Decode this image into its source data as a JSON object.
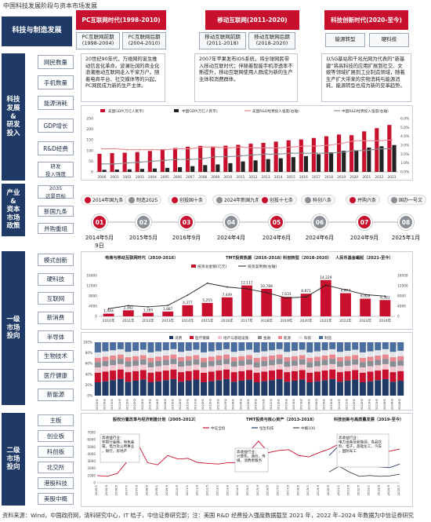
{
  "title": "中国科技发展阶段与资本市场发展",
  "footer": "资料来源：Wind，中国政府网，清科研究中心，IT 桔子，中信证券研究部；注：美国 R&D 经费投入强度数据截至 2021 年，2022 年–2024 年数据为中信证券研究",
  "section_tech": "科技与制造发展",
  "eras": [
    {
      "title": "PC互联网时代",
      "range": "(1998-2010)",
      "subs": [
        {
          "name": "PC互联网前期",
          "range": "(1998-2004)"
        },
        {
          "name": "PC互联网后期",
          "range": "(2004-2010)"
        }
      ]
    },
    {
      "title": "移动互联网",
      "range": "(2011-2020)",
      "subs": [
        {
          "name": "移动互联网前期",
          "range": "(2011-2018)"
        },
        {
          "name": "移动互联网后期",
          "range": "(2018-2020)"
        }
      ]
    },
    {
      "title": "科技创新时代",
      "range": "(2020-至今)",
      "subs": [
        {
          "name": "能源转型",
          "range": ""
        },
        {
          "name": "硬科技",
          "range": ""
        }
      ]
    }
  ],
  "section_invest": "科技\n发展\n&\n研发\n投入",
  "invest_tags": [
    "网民数量",
    "手机数量",
    "能源消耗",
    "GDP增长",
    "R&D经费",
    "研发\n投入强度"
  ],
  "descs": [
    "20世纪90年代，万维网的诞生推动信息化革命。波澜壮阔的商业化浪潮推动互联网走入千家万户。随着电商平台、社交媒体等的兴起，PC网民成为新的生产主体。",
    "2007年苹果发布IOS系统，将全球网民带入移动互联时代；伴随着智能手机渗透率不断提升，移动互联网使用人群成为新的生产主体和消费群体。",
    "以5G基站和千兆光网为代表的“新基建”将高科技的应用扩展到社交、文娱等领域扩展到工业制造领域，随着生产扩大带来的实物消耗与能源消耗，能源转型也成为新的变革趋势。"
  ],
  "gdp_chart": {
    "legend": [
      "美国GDP(万亿人民币)",
      "中国GDP(万亿人民币)",
      "美国R&D经费投入强度(右轴)",
      "中国R&D经费投入强度(右轴)"
    ],
    "years": [
      "2000",
      "2001",
      "2002",
      "2003",
      "2004",
      "2005",
      "2006",
      "2007",
      "2008",
      "2009",
      "2010",
      "2011",
      "2012",
      "2013",
      "2014",
      "2015",
      "2016",
      "2017",
      "2018",
      "2019",
      "2020",
      "2021",
      "2022",
      "2023"
    ],
    "us_gdp": [
      85,
      88,
      90,
      93,
      98,
      106,
      112,
      118,
      122,
      119,
      123,
      127,
      132,
      136,
      142,
      148,
      152,
      159,
      167,
      175,
      172,
      190,
      205,
      220
    ],
    "cn_gdp": [
      10,
      11,
      12,
      14,
      16,
      19,
      22,
      27,
      32,
      35,
      41,
      49,
      54,
      60,
      64,
      69,
      74,
      83,
      92,
      99,
      101,
      114,
      120,
      126
    ],
    "us_rd": [
      2.6,
      2.6,
      2.5,
      2.5,
      2.5,
      2.5,
      2.6,
      2.6,
      2.8,
      2.8,
      2.7,
      2.8,
      2.7,
      2.7,
      2.7,
      2.8,
      2.9,
      2.9,
      3.0,
      3.2,
      3.5,
      3.5,
      3.5,
      3.6
    ],
    "cn_rd": [
      0.9,
      0.9,
      1.0,
      1.1,
      1.2,
      1.3,
      1.4,
      1.4,
      1.5,
      1.7,
      1.7,
      1.8,
      1.9,
      2.0,
      2.0,
      2.1,
      2.1,
      2.1,
      2.1,
      2.2,
      2.4,
      2.4,
      2.6,
      2.6
    ],
    "ylim": [
      0,
      250
    ],
    "y2lim": [
      0,
      6
    ]
  },
  "section_policy": "产业\n&\n资本\n市场\n政策",
  "policy_tags": [
    "2035\n远景目标",
    "新国九条",
    "并购重组"
  ],
  "policies": [
    {
      "num": "01",
      "label": "2014年国九条",
      "date": "2014年5月9日",
      "color": "#c8102e"
    },
    {
      "num": "02",
      "label": "制造2025",
      "date": "2015年5月",
      "color": "#8a8f96"
    },
    {
      "num": "03",
      "label": "创投国十条",
      "date": "2016年9月",
      "color": "#c8102e"
    },
    {
      "num": "04",
      "label": "2024年新国九条",
      "date": "2024年4月",
      "color": "#8a8f96"
    },
    {
      "num": "05",
      "label": "创投十七条",
      "date": "2024年6月",
      "color": "#c8102e"
    },
    {
      "num": "06",
      "label": "科创八条",
      "date": "2024年6月",
      "color": "#8a8f96"
    },
    {
      "num": "07",
      "label": "并购六条",
      "date": "2024年9月",
      "color": "#c8102e"
    },
    {
      "num": "08",
      "label": "国办一号文",
      "date": "2025年1月",
      "color": "#8a8f96"
    }
  ],
  "section_primary": "一级\n市场\n投向",
  "primary_tags": [
    "模式创新",
    "硬科技",
    "互联网",
    "新消费",
    "半导体",
    "生物技术",
    "医疗健康",
    "新能源"
  ],
  "primary_phases": [
    "电商与移动互联网时代（2010-2016）",
    "TMT投资热潮（2016-2018）",
    "科创转型（2018-2020）",
    "人民币基金崛起（2021-至今）"
  ],
  "invest_chart": {
    "legend": [
      "投资总金额(亿元)",
      "投资案例数(右轴)"
    ],
    "years": [
      "2010年",
      "2011年",
      "2012年",
      "2013年",
      "2014年",
      "2015年",
      "2016年",
      "2017年",
      "2018年",
      "2019年",
      "2020年",
      "2021年",
      "2022年",
      "2023年",
      "2024年"
    ],
    "amount": [
      1044,
      2362,
      1385,
      1887,
      4377,
      5255,
      7449,
      12111,
      10788,
      7631,
      8871,
      14229,
      9077,
      6928,
      6381
    ],
    "labels": [
      "1,044",
      "2,362",
      "1,385",
      "1,887",
      "4,377",
      "5,255",
      "7,449",
      "12,111",
      "10,788",
      "7,631",
      "8,871",
      "14,229",
      "9,077",
      "6,928",
      "6,381"
    ],
    "count": [
      3000,
      4200,
      3700,
      4300,
      8300,
      13000,
      11500,
      10800,
      9300,
      7200,
      7600,
      12200,
      10400,
      8500,
      7900
    ],
    "ylim": [
      0,
      16000
    ]
  },
  "stack_chart": {
    "legend": [
      "消费",
      "医疗健康",
      "地产与基础设施",
      "金融",
      "能源",
      "科技",
      "制造"
    ],
    "colors": [
      "#1f3a66",
      "#c8102e",
      "#f2c7cf",
      "#8a8f96",
      "#e9898f",
      "#e4e6ea",
      "#4b6e9e"
    ],
    "periods": [
      "2020H1",
      "2020H2",
      "2021H1",
      "2021H2",
      "2022H1",
      "2022H2",
      "2023H1",
      "2023H2",
      "2024H1",
      "2024H2",
      "2020H1",
      "2020H2",
      "2021H1",
      "2021H2",
      "2022H1",
      "2022H2",
      "2023H1",
      "2023H2",
      "2024H1",
      "2024H2",
      "2020H1",
      "2020H2",
      "2021H1",
      "2021H2",
      "2022H1",
      "2022H2",
      "2023H1",
      "2023H2",
      "2024H1",
      "2024H2",
      "2020H1",
      "2020H2",
      "2021H1",
      "2021H2",
      "2022H1",
      "2022H2",
      "2023H1",
      "2023H2",
      "2024H1",
      "2024H2",
      "2024H2"
    ]
  },
  "section_secondary": "二级\n市场\n投向",
  "secondary_tags": [
    "主板",
    "创业板",
    "科创板",
    "北交所",
    "港股科技",
    "美股中概"
  ],
  "secondary_phases": [
    "股权分置改革与经济刺激计划（2005-2012）",
    "TMT投资与核心资产（2013-2018）",
    "科技创新与高质量发展（2019-至今）"
  ],
  "index_chart": {
    "legend": [
      "中证全指",
      "恒生科技",
      "中概100"
    ],
    "notes": [
      "高收益行业：\n非银行金融，有色金属，电力及公用事业，银行，房地产",
      "高收益行业：\n计算机，通信，传媒，消费者服务",
      "高收益行业：\n电力设备及新能源，食品饮料，电子，基础化工，汽车，国防军工"
    ],
    "dates": [
      "2005/1",
      "2005/9",
      "2006/5",
      "2007/1",
      "2007/9",
      "2008/5",
      "2009/1",
      "2009/9",
      "2010/5",
      "2011/1",
      "2011/9",
      "2012/5",
      "2013/1",
      "2013/9",
      "2014/5",
      "2015/1",
      "2015/9",
      "2016/5",
      "2017/1",
      "2017/9",
      "2018/5",
      "2019/1",
      "2019/9",
      "2020/5",
      "2021/1",
      "2021/9",
      "2022/5",
      "2023/1",
      "2023/9",
      "2024/5",
      "2025/1"
    ],
    "series_a": [
      1000,
      900,
      1300,
      3000,
      5500,
      2800,
      2500,
      3800,
      3300,
      3400,
      2800,
      2700,
      2600,
      2800,
      2800,
      4200,
      5800,
      4200,
      4500,
      4600,
      3800,
      3600,
      4200,
      4700,
      5400,
      5400,
      4700,
      4500,
      4300,
      4400,
      4700
    ],
    "series_b": [
      null,
      null,
      null,
      null,
      null,
      null,
      null,
      null,
      null,
      null,
      null,
      null,
      null,
      null,
      null,
      null,
      null,
      null,
      null,
      null,
      null,
      null,
      null,
      3800,
      5200,
      3600,
      2700,
      2500,
      2200,
      2100,
      2600
    ],
    "series_c": [
      null,
      null,
      null,
      null,
      null,
      null,
      null,
      null,
      null,
      null,
      null,
      null,
      null,
      null,
      null,
      null,
      null,
      null,
      null,
      null,
      null,
      null,
      null,
      1500,
      2300,
      1500,
      900,
      1000,
      900,
      950,
      1200
    ],
    "ylim": [
      0,
      7000
    ]
  }
}
